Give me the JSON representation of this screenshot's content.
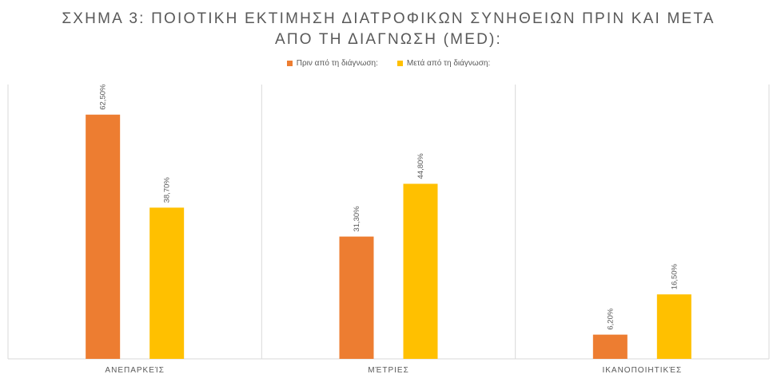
{
  "chart_data": {
    "type": "bar",
    "title_lines": [
      "ΣΧΗΜΑ 3: ΠΟΙΟΤΙΚΗ ΕΚΤΙΜΗΣΗ ΔΙΑΤΡΟΦΙΚΩΝ ΣΥΝΗΘΕΙΩΝ ΠΡΙΝ ΚΑΙ ΜΕΤΑ",
      "ΑΠΟ ΤΗ ΔΙΑΓΝΩΣΗ (MED):"
    ],
    "categories": [
      "ΑΝΕΠΑΡΚΕΊΣ",
      "ΜΈΤΡΙΕΣ",
      "ΙΚΑΝΟΠΟΙΗΤΙΚΈΣ"
    ],
    "series": [
      {
        "name": "Πριν από τη διάγνωση:",
        "values": [
          62.5,
          31.3,
          6.2
        ],
        "labels": [
          "62,50%",
          "31,30%",
          "6,20%"
        ],
        "color": "#ED7D31"
      },
      {
        "name": "Μετά από τη διάγνωση:",
        "values": [
          38.7,
          44.8,
          16.5
        ],
        "labels": [
          "38,70%",
          "44,80%",
          "16,50%"
        ],
        "color": "#FFC000"
      }
    ],
    "ylim": [
      0,
      70
    ],
    "legend_position": "top",
    "grid": false,
    "category_separators": true
  }
}
